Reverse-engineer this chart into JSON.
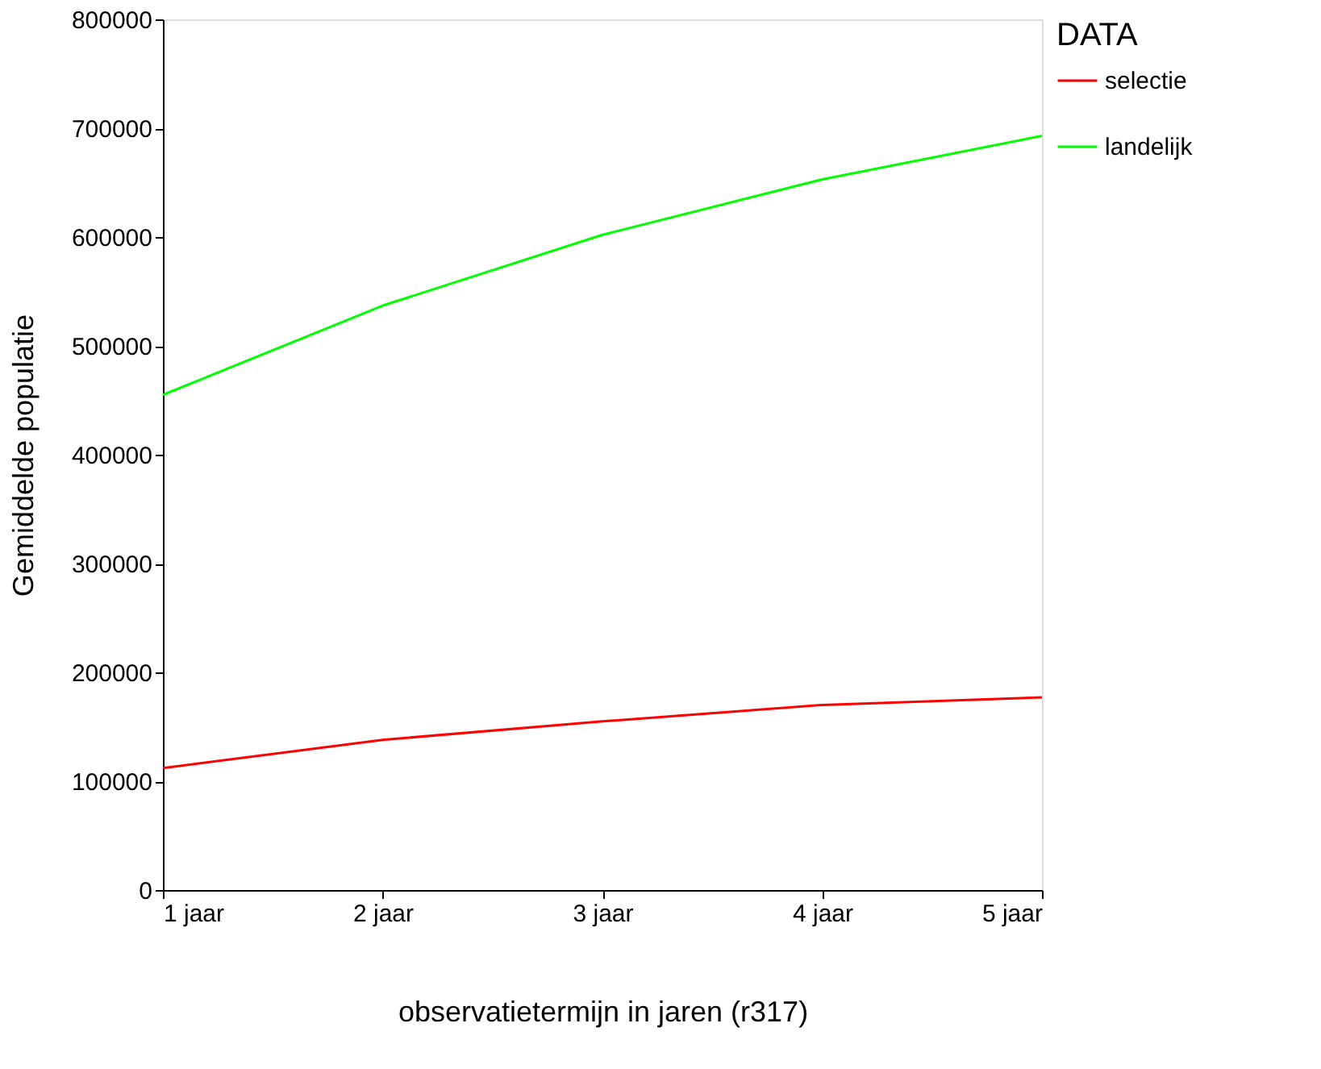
{
  "chart_data": {
    "type": "line",
    "xlabel": "observatietermijn in jaren (r317)",
    "ylabel": "Gemiddelde populatie",
    "legend_title": "DATA",
    "legend": "right",
    "grid": false,
    "marker": "none",
    "line_style": "solid",
    "categories": [
      "1 jaar",
      "2 jaar",
      "3 jaar",
      "4 jaar",
      "5 jaar"
    ],
    "ylim": [
      0,
      800000
    ],
    "yticks": [
      0,
      100000,
      200000,
      300000,
      400000,
      500000,
      600000,
      700000,
      800000
    ],
    "series": [
      {
        "name": "selectie",
        "color": "#ff0000",
        "values": [
          112000,
          138000,
          155000,
          170000,
          177000
        ]
      },
      {
        "name": "landelijk",
        "color": "#00ff00",
        "values": [
          455000,
          537000,
          602000,
          653000,
          693000
        ]
      }
    ]
  }
}
